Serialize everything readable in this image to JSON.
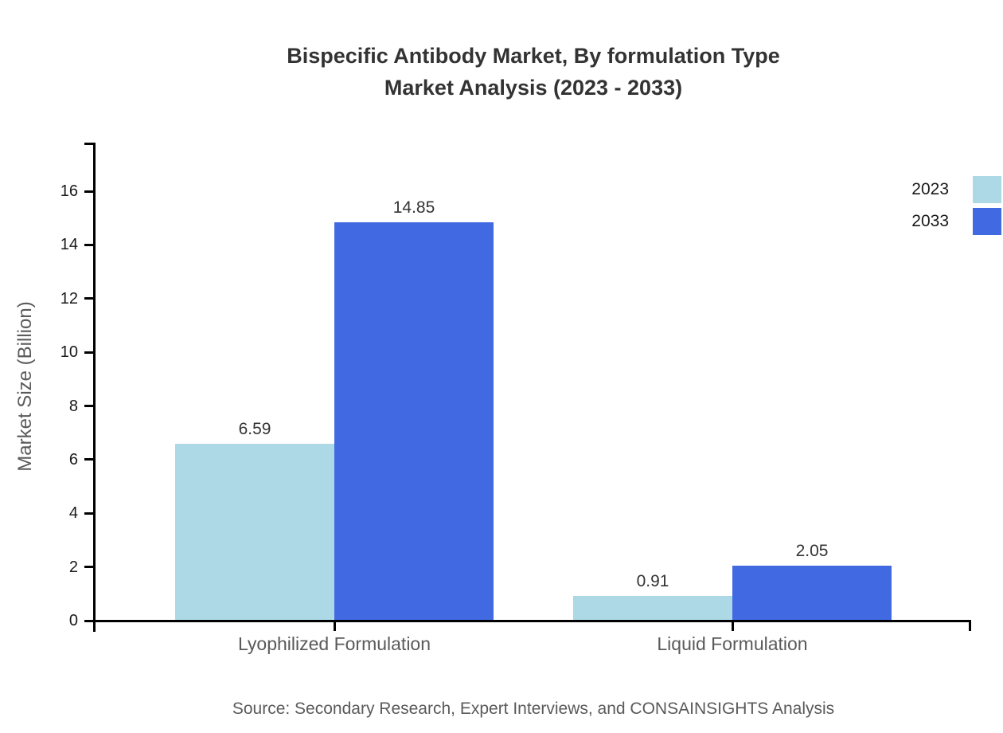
{
  "title": {
    "line1": "Bispecific Antibody Market, By formulation Type",
    "line2": "Market Analysis (2023 - 2033)"
  },
  "source": "Source: Secondary Research, Expert Interviews, and CONSAINSIGHTS Analysis",
  "chart_data": {
    "type": "bar",
    "title": "Bispecific Antibody Market, By formulation Type — Market Analysis (2023 - 2033)",
    "categories": [
      "Lyophilized Formulation",
      "Liquid Formulation"
    ],
    "series": [
      {
        "name": "2023",
        "color": "#ADD8E6",
        "values": [
          6.59,
          0.91
        ]
      },
      {
        "name": "2033",
        "color": "#4169E1",
        "values": [
          14.85,
          2.05
        ]
      }
    ],
    "xlabel": "",
    "ylabel": "Market Size (Billion)",
    "yticks": [
      0,
      2,
      4,
      6,
      8,
      10,
      12,
      14,
      16
    ],
    "ylim": [
      0,
      16
    ],
    "grid": false,
    "legend_position": "top-right-outside",
    "value_label_format": "2-decimals"
  },
  "colors": {
    "background": "#ffffff",
    "axis": "#000000",
    "title_text": "#333333",
    "tick_text": "#1a1a1a",
    "category_text": "#5a5a5a",
    "ylabel_text": "#5a5a5a",
    "value_label_text": "#333333",
    "legend_text": "#1a1a1a",
    "source_text": "#5a5a5a"
  }
}
